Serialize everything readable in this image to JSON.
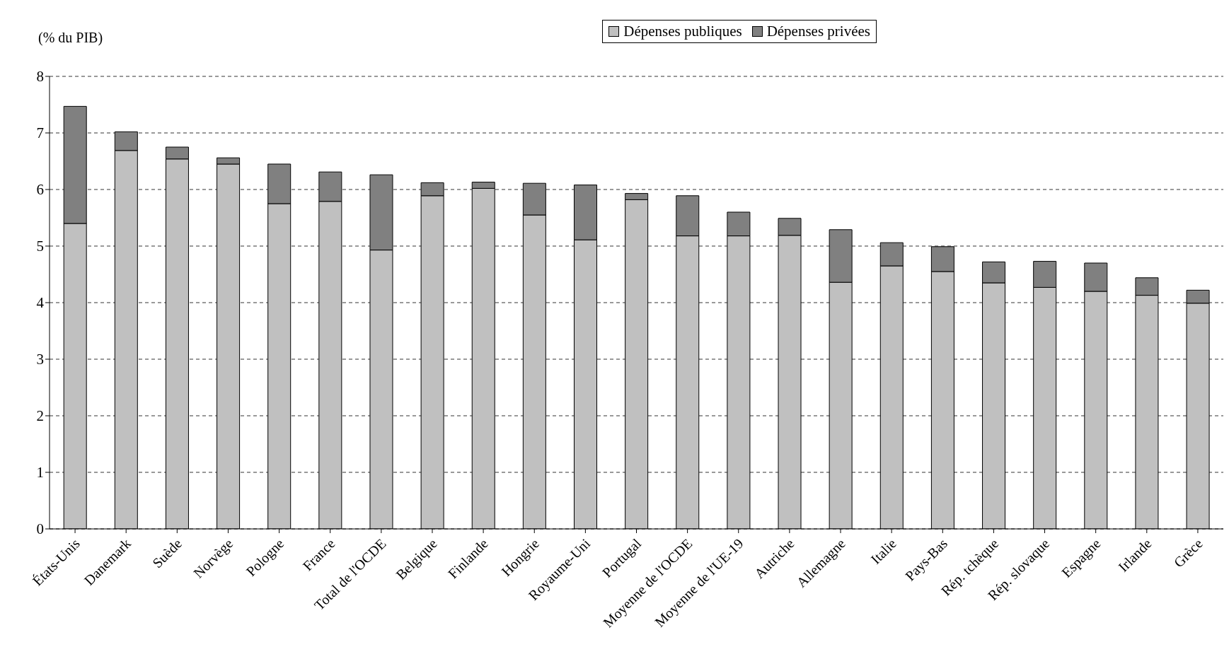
{
  "chart_data": {
    "type": "bar",
    "stacked": true,
    "ylabel": "(% du PIB)",
    "categories": [
      "États-Unis",
      "Danemark",
      "Suède",
      "Norvège",
      "Pologne",
      "France",
      "Total de l'OCDE",
      "Belgique",
      "Finlande",
      "Hongrie",
      "Royaume-Uni",
      "Portugal",
      "Moyenne de l'OCDE",
      "Moyenne de l'UE-19",
      "Autriche",
      "Allemagne",
      "Italie",
      "Pays-Bas",
      "Rép. tchèque",
      "Rép. slovaque",
      "Espagne",
      "Irlande",
      "Grèce"
    ],
    "series": [
      {
        "name": "Dépenses publiques",
        "color": "#c0c0c0",
        "values": [
          5.4,
          6.69,
          6.54,
          6.45,
          5.75,
          5.79,
          4.93,
          5.89,
          6.02,
          5.55,
          5.11,
          5.82,
          5.18,
          5.18,
          5.19,
          4.36,
          4.65,
          4.55,
          4.35,
          4.27,
          4.2,
          4.13,
          3.99
        ]
      },
      {
        "name": "Dépenses privées",
        "color": "#808080",
        "values": [
          2.07,
          0.33,
          0.21,
          0.11,
          0.7,
          0.52,
          1.33,
          0.23,
          0.11,
          0.56,
          0.97,
          0.11,
          0.71,
          0.42,
          0.3,
          0.93,
          0.41,
          0.44,
          0.37,
          0.46,
          0.5,
          0.31,
          0.23
        ]
      }
    ],
    "ylim": [
      0,
      8
    ],
    "yticks": [
      0,
      1,
      2,
      3,
      4,
      5,
      6,
      7,
      8
    ],
    "grid": "y",
    "legend": "top right"
  }
}
